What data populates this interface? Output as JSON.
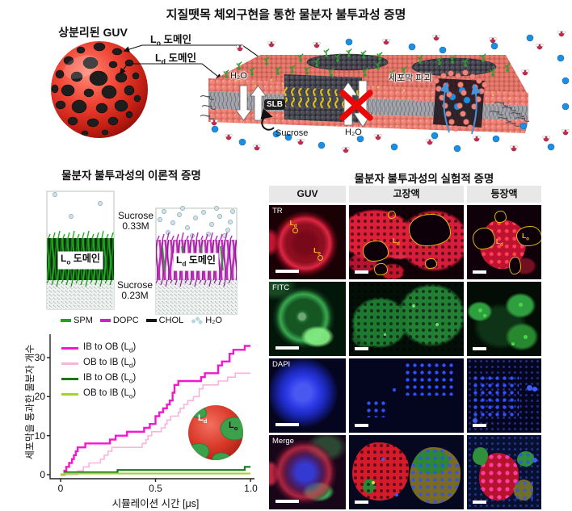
{
  "figure": {
    "title": "지질뗏목 체외구현을 통한 물분자 불투과성 증명"
  },
  "top": {
    "guv_label": "상분리된 GUV",
    "lo": {
      "pre": "L",
      "sub": "o",
      "post": " 도메인"
    },
    "ld": {
      "pre": "L",
      "sub": "d",
      "post": " 도메인"
    },
    "h2o": "H₂O",
    "slb": "SLB",
    "sucrose": "Sucrose",
    "rupture": "세포막 파괴"
  },
  "theory": {
    "title": "물분자 불투과성의 이론적 증명",
    "sucrose_top_line1": "Sucrose",
    "sucrose_top_line2": "0.33M",
    "sucrose_bottom_line1": "Sucrose",
    "sucrose_bottom_line2": "0.23M",
    "lo_domain": {
      "pre": "L",
      "sub": "o",
      "post": " 도메인"
    },
    "ld_domain": {
      "pre": "L",
      "sub": "d",
      "post": " 도메인"
    },
    "mol_legend": [
      {
        "label": "SPM",
        "color": "#1ea51e"
      },
      {
        "label": "DOPC",
        "color": "#cc22cc"
      },
      {
        "label": "CHOL",
        "color": "#141414"
      },
      {
        "label": "H₂O",
        "color": "#b9d6de"
      }
    ]
  },
  "chart_data": {
    "type": "line",
    "style": "step",
    "xlabel": "시뮬레이션 시간 [μs]",
    "ylabel": "세포막을 통과한 물분자 개수",
    "xlim": [
      0,
      1.0
    ],
    "ylim": [
      0,
      35
    ],
    "xticks": [
      "0",
      "0.5",
      "1.0"
    ],
    "xtick_values": [
      0,
      0.5,
      1.0
    ],
    "yticks": [
      "0",
      "10",
      "20",
      "30"
    ],
    "ytick_values": [
      0,
      10,
      20,
      30
    ],
    "grid": false,
    "legend_position": "upper-left",
    "series": [
      {
        "label_pre": "IB to OB (L",
        "label_sub": "d",
        "label_post": ")",
        "color": "#f318cf",
        "lw": 2.4,
        "x": [
          0,
          0.02,
          0.03,
          0.045,
          0.06,
          0.07,
          0.08,
          0.09,
          0.13,
          0.26,
          0.29,
          0.35,
          0.44,
          0.47,
          0.5,
          0.52,
          0.54,
          0.56,
          0.575,
          0.59,
          0.6,
          0.62,
          0.74,
          0.76,
          0.83,
          0.85,
          0.89,
          0.91,
          0.97
        ],
        "y": [
          0,
          1,
          2,
          3,
          4,
          5,
          6,
          7,
          8,
          9,
          10,
          11,
          12,
          13,
          15,
          16,
          17,
          18,
          19,
          21,
          23,
          24,
          25,
          26,
          28,
          29,
          31,
          32,
          33
        ]
      },
      {
        "label_pre": "OB to IB (L",
        "label_sub": "d",
        "label_post": ")",
        "color": "#f9b3dc",
        "lw": 1.6,
        "x": [
          0,
          0.09,
          0.12,
          0.15,
          0.21,
          0.23,
          0.25,
          0.27,
          0.43,
          0.45,
          0.46,
          0.48,
          0.53,
          0.55,
          0.56,
          0.58,
          0.62,
          0.63,
          0.65,
          0.67,
          0.7,
          0.73,
          0.75,
          0.83,
          0.88,
          0.92
        ],
        "y": [
          0,
          1,
          2,
          3,
          4,
          5,
          6,
          7,
          8,
          9,
          10,
          11,
          12,
          13,
          14,
          15,
          16,
          17,
          18,
          19,
          20,
          22,
          23,
          24,
          25,
          26
        ]
      },
      {
        "label_pre": "IB to OB (L",
        "label_sub": "o",
        "label_post": ")",
        "color": "#177a17",
        "lw": 2.2,
        "x": [
          0,
          0.02,
          0.3,
          0.97
        ],
        "y": [
          0,
          0.6,
          1.2,
          2
        ]
      },
      {
        "label_pre": "OB to IB (L",
        "label_sub": "o",
        "label_post": ")",
        "color": "#a4d42c",
        "lw": 2.2,
        "x": [
          0,
          0.02
        ],
        "y": [
          0,
          0.3
        ]
      }
    ],
    "inset_ld": {
      "pre": "L",
      "sub": "d"
    },
    "inset_lo": {
      "pre": "L",
      "sub": "o"
    }
  },
  "experiment": {
    "title": "물분자 불투과성의 실험적 증명",
    "columns": [
      "GUV",
      "고장액",
      "등장액"
    ],
    "rows": [
      "TR",
      "FITC",
      "DAPI",
      "Merge"
    ],
    "ann_ld": {
      "pre": "L",
      "sub": "d"
    },
    "ann_lo": {
      "pre": "L",
      "sub": "o"
    }
  }
}
